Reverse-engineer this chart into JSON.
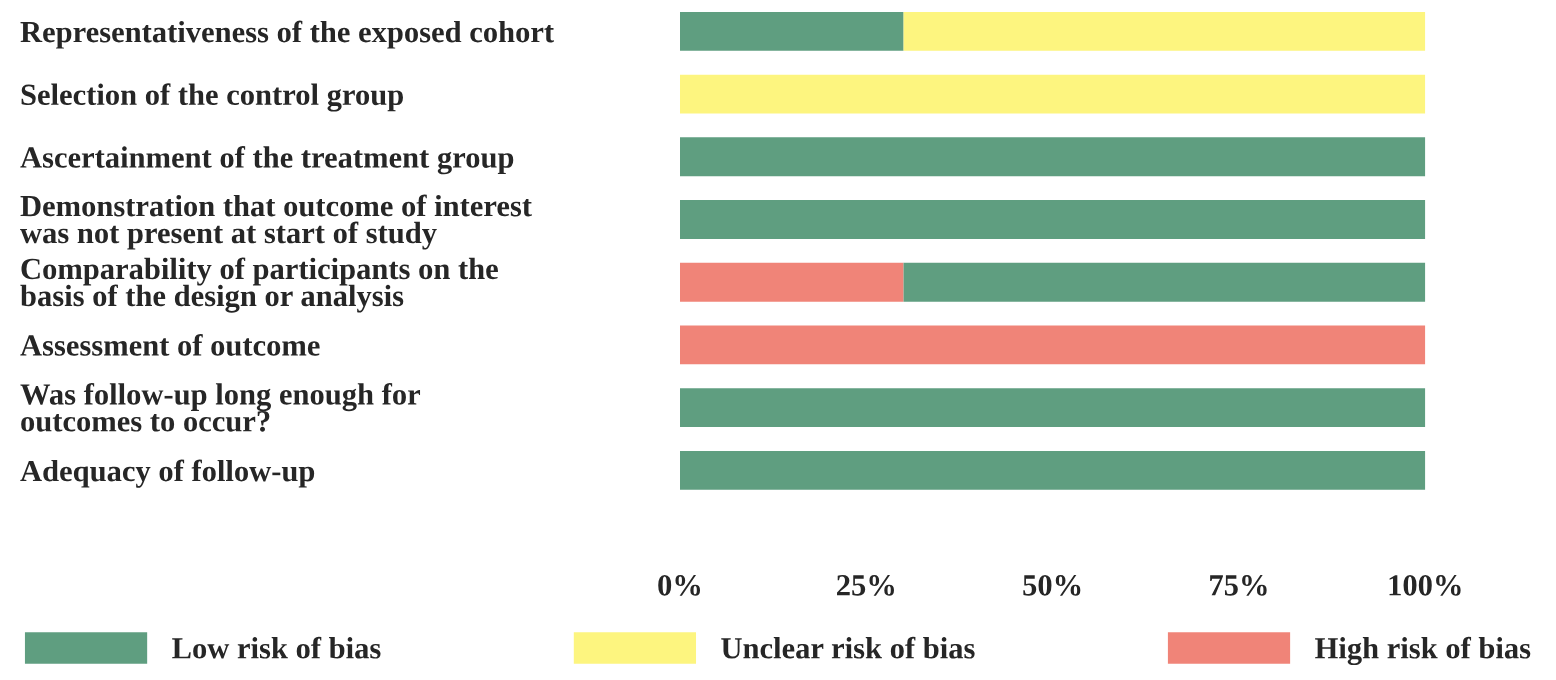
{
  "chart_data": {
    "type": "bar",
    "orientation": "horizontal",
    "stacked": true,
    "categories": [
      "Representativeness of the exposed cohort",
      "Selection of the control group",
      "Ascertainment of the treatment group",
      "Demonstration that outcome of interest\nwas not present at start of study",
      "Comparability of participants on the\nbasis of the design or analysis",
      "Assessment of outcome",
      "Was follow-up long enough for\noutcomes to occur?",
      "Adequacy of follow-up"
    ],
    "series": [
      {
        "name": "High risk of bias",
        "color": "#f08478",
        "values": [
          0,
          0,
          0,
          0,
          30,
          100,
          0,
          0
        ]
      },
      {
        "name": "Low risk of bias",
        "color": "#5f9e80",
        "values": [
          30,
          0,
          100,
          100,
          70,
          0,
          100,
          100
        ]
      },
      {
        "name": "Unclear risk of bias",
        "color": "#fdf57f",
        "values": [
          70,
          100,
          0,
          0,
          0,
          0,
          0,
          0
        ]
      }
    ],
    "xlim": [
      0,
      100
    ],
    "xticks": [
      {
        "value": 0,
        "label": "0%"
      },
      {
        "value": 25,
        "label": "25%"
      },
      {
        "value": 50,
        "label": "50%"
      },
      {
        "value": 75,
        "label": "75%"
      },
      {
        "value": 100,
        "label": "100%"
      }
    ],
    "legend": "bottom"
  }
}
